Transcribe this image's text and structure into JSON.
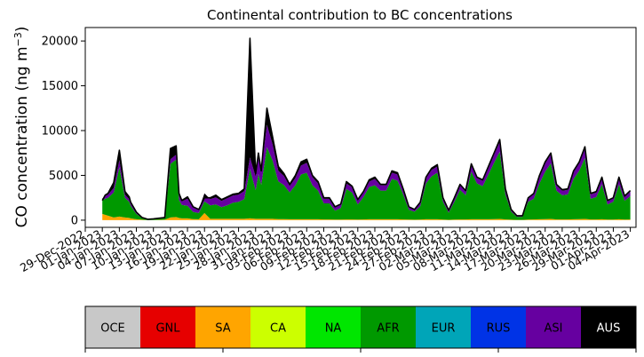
{
  "chart_data": {
    "type": "area",
    "stacked": true,
    "title": "Continental contribution to BC concentrations",
    "ylabel": "CO concentration (ng m$^{-3}$)",
    "ylabel_parts": {
      "main": "CO concentration (ng m",
      "sup": "−3",
      "close": ")"
    },
    "ylim": [
      -800,
      21500
    ],
    "y_ticks": [
      0,
      5000,
      10000,
      15000,
      20000
    ],
    "x_start": "2022-12-29",
    "x_end": "2023-04-05",
    "date_ticks": [
      "29-Dec-2022",
      "01-Jan-2023",
      "04-Jan-2023",
      "07-Jan-2023",
      "10-Jan-2023",
      "13-Jan-2023",
      "16-Jan-2023",
      "19-Jan-2023",
      "22-Jan-2023",
      "25-Jan-2023",
      "28-Jan-2023",
      "31-Jan-2023",
      "03-Feb-2023",
      "06-Feb-2023",
      "09-Feb-2023",
      "12-Feb-2023",
      "15-Feb-2023",
      "18-Feb-2023",
      "21-Feb-2023",
      "24-Feb-2023",
      "27-Feb-2023",
      "02-Mar-2023",
      "05-Mar-2023",
      "08-Mar-2023",
      "11-Mar-2023",
      "14-Mar-2023",
      "17-Mar-2023",
      "20-Mar-2023",
      "23-Mar-2023",
      "26-Mar-2023",
      "29-Mar-2023",
      "01-Apr-2023",
      "04-Apr-2023"
    ],
    "series_order": [
      "SA",
      "AFR",
      "ASI",
      "AUS"
    ],
    "series": [
      {
        "name": "SA",
        "color": "#ffa500"
      },
      {
        "name": "AFR",
        "color": "#009900"
      },
      {
        "name": "ASI",
        "color": "#6600a0"
      },
      {
        "name": "AUS",
        "color": "#000000"
      }
    ],
    "x": [
      "2023-01-01",
      "2023-01-01T12:00",
      "2023-01-02",
      "2023-01-03",
      "2023-01-04",
      "2023-01-05",
      "2023-01-05T18:00",
      "2023-01-06",
      "2023-01-07",
      "2023-01-08",
      "2023-01-09",
      "2023-01-10",
      "2023-01-12",
      "2023-01-13",
      "2023-01-14",
      "2023-01-14T12:00",
      "2023-01-15",
      "2023-01-16",
      "2023-01-17",
      "2023-01-18",
      "2023-01-19",
      "2023-01-20",
      "2023-01-21",
      "2023-01-22",
      "2023-01-23",
      "2023-01-24",
      "2023-01-25",
      "2023-01-26",
      "2023-01-27",
      "2023-01-28",
      "2023-01-28T12:00",
      "2023-01-29",
      "2023-01-30",
      "2023-01-31",
      "2023-02-01",
      "2023-02-02",
      "2023-02-03",
      "2023-02-04",
      "2023-02-05",
      "2023-02-06",
      "2023-02-07",
      "2023-02-08",
      "2023-02-09",
      "2023-02-10",
      "2023-02-11",
      "2023-02-12",
      "2023-02-13",
      "2023-02-14",
      "2023-02-15",
      "2023-02-16",
      "2023-02-17",
      "2023-02-18",
      "2023-02-19",
      "2023-02-20",
      "2023-02-21",
      "2023-02-22",
      "2023-02-23",
      "2023-02-24",
      "2023-02-25",
      "2023-02-26",
      "2023-02-27",
      "2023-02-28",
      "2023-03-01",
      "2023-03-02",
      "2023-03-03",
      "2023-03-04",
      "2023-03-05",
      "2023-03-06",
      "2023-03-07",
      "2023-03-08",
      "2023-03-09",
      "2023-03-10",
      "2023-03-11",
      "2023-03-12",
      "2023-03-13",
      "2023-03-14",
      "2023-03-15",
      "2023-03-16",
      "2023-03-17",
      "2023-03-18",
      "2023-03-19",
      "2023-03-20",
      "2023-03-21",
      "2023-03-22",
      "2023-03-23",
      "2023-03-24",
      "2023-03-25",
      "2023-03-26",
      "2023-03-27",
      "2023-03-28",
      "2023-03-29",
      "2023-03-30",
      "2023-03-31",
      "2023-04-01",
      "2023-04-02",
      "2023-04-03",
      "2023-04-04"
    ],
    "total": [
      2200,
      2800,
      3000,
      4200,
      7800,
      3200,
      2600,
      2000,
      900,
      300,
      100,
      150,
      300,
      8000,
      8300,
      3000,
      2200,
      2600,
      1500,
      1200,
      2500,
      2500,
      2800,
      2300,
      2600,
      2900,
      3000,
      3500,
      20300,
      5200,
      7500,
      5500,
      12500,
      9300,
      6000,
      5200,
      4000,
      5000,
      6500,
      6800,
      5000,
      4300,
      2500,
      2500,
      1500,
      1800,
      4300,
      3800,
      2300,
      3200,
      4500,
      4800,
      4000,
      4000,
      5500,
      5300,
      3500,
      1500,
      1200,
      2000,
      4800,
      5800,
      6200,
      2500,
      1100,
      2500,
      4000,
      3300,
      6300,
      4800,
      4500,
      6000,
      7500,
      9000,
      3500,
      1200,
      500,
      500,
      2500,
      3000,
      5000,
      6500,
      7500,
      4000,
      3400,
      3500,
      5500,
      6500,
      8200,
      3000,
      3200,
      4800,
      2200,
      2500,
      4800,
      2700,
      3300
    ],
    "AFR": [
      1500,
      1800,
      2000,
      2800,
      5500,
      2200,
      1800,
      1400,
      600,
      200,
      80,
      100,
      200,
      6000,
      6400,
      2000,
      1500,
      1400,
      800,
      700,
      1300,
      1500,
      1600,
      1300,
      1500,
      1800,
      1900,
      2200,
      5500,
      3200,
      5000,
      3800,
      8000,
      6500,
      4200,
      3800,
      3000,
      3800,
      5000,
      5200,
      3800,
      3200,
      1800,
      1800,
      1000,
      1300,
      3400,
      3000,
      1700,
      2500,
      3600,
      3800,
      3200,
      3200,
      4500,
      4300,
      2800,
      1100,
      900,
      1500,
      4000,
      4800,
      5200,
      2000,
      800,
      2000,
      3300,
      2700,
      5300,
      4000,
      3700,
      5000,
      6300,
      7500,
      2800,
      900,
      350,
      350,
      2000,
      2300,
      4000,
      5300,
      6200,
      3200,
      2700,
      2800,
      4500,
      5400,
      6800,
      2300,
      2500,
      3900,
      1700,
      2000,
      3900,
      2100,
      2600
    ],
    "ASI": [
      200,
      300,
      350,
      500,
      800,
      350,
      300,
      250,
      150,
      50,
      20,
      30,
      50,
      500,
      550,
      400,
      400,
      800,
      500,
      400,
      900,
      700,
      800,
      700,
      800,
      800,
      800,
      900,
      1300,
      1500,
      1800,
      1500,
      2500,
      1800,
      1200,
      1000,
      700,
      800,
      1000,
      1100,
      900,
      800,
      500,
      500,
      400,
      400,
      600,
      600,
      500,
      500,
      600,
      700,
      600,
      600,
      700,
      700,
      500,
      300,
      250,
      400,
      600,
      700,
      700,
      400,
      250,
      400,
      500,
      500,
      700,
      600,
      600,
      700,
      900,
      1100,
      500,
      250,
      120,
      120,
      400,
      500,
      700,
      900,
      1000,
      600,
      500,
      500,
      800,
      900,
      1100,
      500,
      500,
      700,
      400,
      400,
      700,
      400,
      500
    ],
    "SA": [
      700,
      600,
      500,
      300,
      400,
      300,
      250,
      200,
      100,
      50,
      0,
      20,
      50,
      300,
      350,
      250,
      200,
      200,
      120,
      100,
      800,
      150,
      150,
      150,
      150,
      150,
      150,
      150,
      200,
      150,
      150,
      150,
      150,
      150,
      120,
      120,
      100,
      100,
      100,
      100,
      100,
      100,
      80,
      80,
      60,
      60,
      80,
      80,
      60,
      80,
      100,
      100,
      100,
      100,
      100,
      100,
      80,
      60,
      50,
      60,
      100,
      100,
      100,
      60,
      40,
      60,
      80,
      80,
      100,
      100,
      100,
      100,
      120,
      140,
      80,
      50,
      30,
      30,
      60,
      80,
      100,
      120,
      140,
      80,
      80,
      80,
      100,
      120,
      140,
      80,
      80,
      100,
      60,
      60,
      100,
      60,
      80
    ]
  },
  "colorbar": {
    "categories": [
      {
        "label": "OCE",
        "color": "#c8c8c8",
        "text_color": "#000000"
      },
      {
        "label": "GNL",
        "color": "#e60000",
        "text_color": "#000000"
      },
      {
        "label": "SA",
        "color": "#ffa500",
        "text_color": "#000000"
      },
      {
        "label": "CA",
        "color": "#ccff00",
        "text_color": "#000000"
      },
      {
        "label": "NA",
        "color": "#00e600",
        "text_color": "#000000"
      },
      {
        "label": "AFR",
        "color": "#009900",
        "text_color": "#000000"
      },
      {
        "label": "EUR",
        "color": "#00a5b8",
        "text_color": "#000000"
      },
      {
        "label": "RUS",
        "color": "#0033e6",
        "text_color": "#000000"
      },
      {
        "label": "ASI",
        "color": "#6600a0",
        "text_color": "#000000"
      },
      {
        "label": "AUS",
        "color": "#000000",
        "text_color": "#ffffff"
      }
    ]
  }
}
